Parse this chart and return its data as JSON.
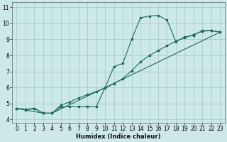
{
  "xlabel": "Humidex (Indice chaleur)",
  "bg_color": "#cce8e8",
  "grid_color": "#aacccc",
  "line_color": "#1a6b5e",
  "line1_x": [
    0,
    1,
    2,
    3,
    4,
    5,
    6,
    7,
    8,
    9,
    10,
    11,
    12,
    13,
    14,
    15,
    16,
    17,
    18,
    19,
    20,
    21,
    22,
    23
  ],
  "line1_y": [
    4.7,
    4.6,
    4.7,
    4.4,
    4.4,
    4.8,
    4.8,
    4.8,
    4.8,
    4.8,
    6.0,
    7.3,
    7.5,
    9.0,
    10.35,
    10.45,
    10.5,
    10.2,
    8.85,
    9.15,
    9.25,
    9.55,
    9.55,
    9.45
  ],
  "line2_x": [
    0,
    1,
    2,
    3,
    4,
    5,
    6,
    7,
    8,
    9,
    10,
    11,
    12,
    13,
    14,
    15,
    16,
    17,
    18,
    19,
    20,
    21,
    22,
    23
  ],
  "line2_y": [
    4.7,
    4.65,
    4.7,
    4.4,
    4.4,
    4.9,
    5.1,
    5.35,
    5.55,
    5.75,
    5.95,
    6.25,
    6.55,
    7.05,
    7.6,
    8.0,
    8.3,
    8.6,
    8.9,
    9.1,
    9.3,
    9.5,
    9.55,
    9.45
  ],
  "line3_x": [
    0,
    3,
    4,
    23
  ],
  "line3_y": [
    4.7,
    4.4,
    4.4,
    9.45
  ],
  "xlim": [
    -0.5,
    23.5
  ],
  "ylim": [
    3.8,
    11.3
  ],
  "xticks": [
    0,
    1,
    2,
    3,
    4,
    5,
    6,
    7,
    8,
    9,
    10,
    11,
    12,
    13,
    14,
    15,
    16,
    17,
    18,
    19,
    20,
    21,
    22,
    23
  ],
  "yticks": [
    4,
    5,
    6,
    7,
    8,
    9,
    10,
    11
  ],
  "xlabel_fontsize": 6.0,
  "tick_fontsize": 5.5
}
